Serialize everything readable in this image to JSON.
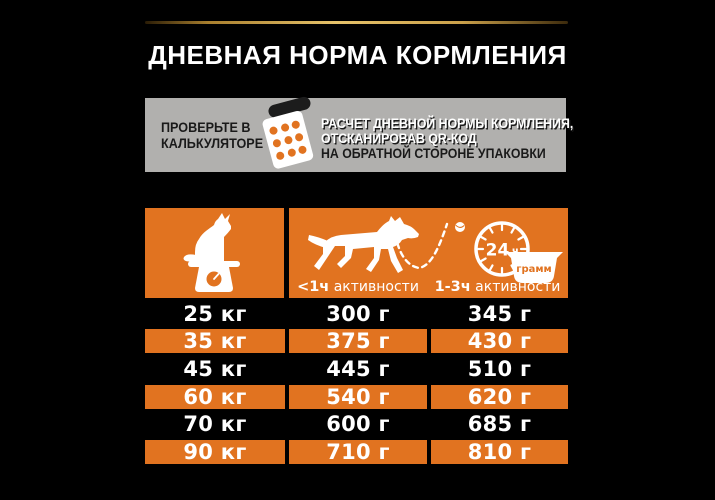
{
  "colors": {
    "orange": "#E17320",
    "banner_gray": "#B1B0AE",
    "text_dark": "#1A1A1A",
    "white": "#FFFFFF"
  },
  "title": "ДНЕВНАЯ НОРМА КОРМЛЕНИЯ",
  "banner": {
    "left": {
      "line1": "ПРОВЕРЬТЕ В",
      "line2": "КАЛЬКУЛЯТОРЕ"
    },
    "right": {
      "line1": "РАСЧЕТ ДНЕВНОЙ НОРМЫ КОРМЛЕНИЯ,",
      "line2": "ОТСКАНИРОВАВ QR-КОД",
      "line3": "НА ОБРАТНОЙ СТОРОНЕ УПАКОВКИ"
    },
    "icons": {
      "calculator": "calculator-icon"
    }
  },
  "table": {
    "header": {
      "icons": {
        "weight": "dog-on-scale-icon",
        "activity": "running-dog-icon",
        "ball": "ball-icon",
        "clock": "24h-clock-icon",
        "bowl": "food-bowl-icon"
      },
      "clock_number": "24",
      "clock_unit": "ч",
      "bowl_label": "грамм",
      "col_low_bold": "<1ч",
      "col_low_rest": " активности",
      "col_high_bold": "1-3ч",
      "col_high_rest": " активности"
    },
    "rows": [
      {
        "weight": "25 кг",
        "low": "300 г",
        "high": "345 г",
        "highlight": false
      },
      {
        "weight": "35 кг",
        "low": "375 г",
        "high": "430 г",
        "highlight": true
      },
      {
        "weight": "45 кг",
        "low": "445 г",
        "high": "510 г",
        "highlight": false
      },
      {
        "weight": "60 кг",
        "low": "540 г",
        "high": "620 г",
        "highlight": true
      },
      {
        "weight": "70 кг",
        "low": "600 г",
        "high": "685 г",
        "highlight": false
      },
      {
        "weight": "90 кг",
        "low": "710 г",
        "high": "810 г",
        "highlight": true
      }
    ]
  }
}
